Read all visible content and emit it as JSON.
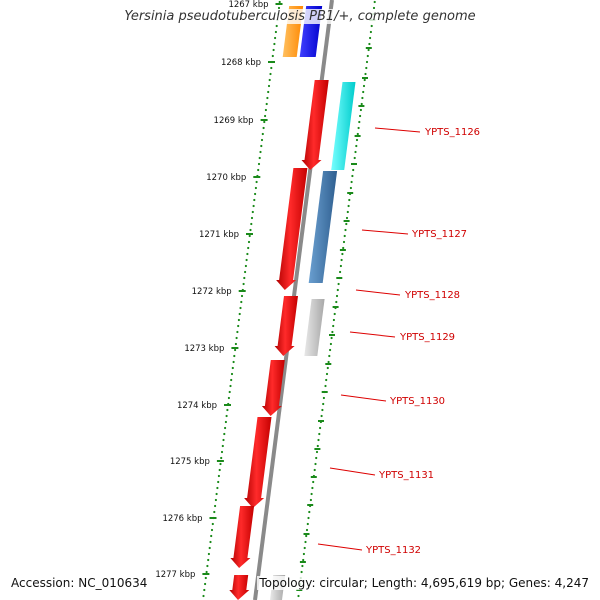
{
  "header": {
    "title": "Yersinia pseudotuberculosis PB1/+, complete genome"
  },
  "footer": {
    "accession": "Accession: NC_010634",
    "summary": "Topology: circular; Length: 4,695,619 bp; Genes: 4,247"
  },
  "ticks": [
    "1267 kbp",
    "1268 kbp",
    "1269 kbp",
    "1270 kbp",
    "1271 kbp",
    "1272 kbp",
    "1273 kbp",
    "1274 kbp",
    "1275 kbp",
    "1276 kbp",
    "1277 kbp"
  ],
  "genes": [
    {
      "label": "YPTS_1126"
    },
    {
      "label": "YPTS_1127"
    },
    {
      "label": "YPTS_1128"
    },
    {
      "label": "YPTS_1129"
    },
    {
      "label": "YPTS_1130"
    },
    {
      "label": "YPTS_1131"
    },
    {
      "label": "YPTS_1132"
    }
  ],
  "colors": {
    "backbone": "#8a8a8a",
    "tick_green": "#1a8a1a",
    "gene_red": "#ee1111",
    "label_red": "#dd0000",
    "cyan": "#22e5e5",
    "steelblue": "#4a7fb0",
    "gray": "#c8c8c8",
    "orange": "#ff9a1a",
    "blue": "#1a1aff"
  }
}
